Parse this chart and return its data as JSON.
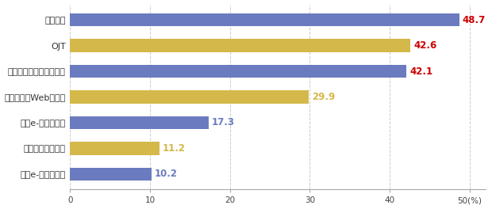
{
  "categories": [
    "自社e-ラーニング",
    "今期と変わらない",
    "外部e-ラーニング",
    "外部研修（Web受講）",
    "外部研修（リアル受講）",
    "OJT",
    "社内研修"
  ],
  "values": [
    10.2,
    11.2,
    17.3,
    29.9,
    42.1,
    42.6,
    48.7
  ],
  "bar_colors": [
    "#6b7bbf",
    "#d4b84a",
    "#6b7bbf",
    "#d4b84a",
    "#6b7bbf",
    "#d4b84a",
    "#6b7bbf"
  ],
  "value_colors": [
    "#6b7bbf",
    "#d4b84a",
    "#6b7bbf",
    "#d4b84a",
    "#cc0000",
    "#cc0000",
    "#cc0000"
  ],
  "xlim": [
    0,
    52
  ],
  "xticks": [
    0,
    10,
    20,
    30,
    40,
    50
  ],
  "xtick_labels": [
    "0",
    "10",
    "20",
    "30",
    "40",
    "50(%)"
  ],
  "grid_color": "#cccccc",
  "background_color": "#ffffff",
  "bar_height": 0.5
}
